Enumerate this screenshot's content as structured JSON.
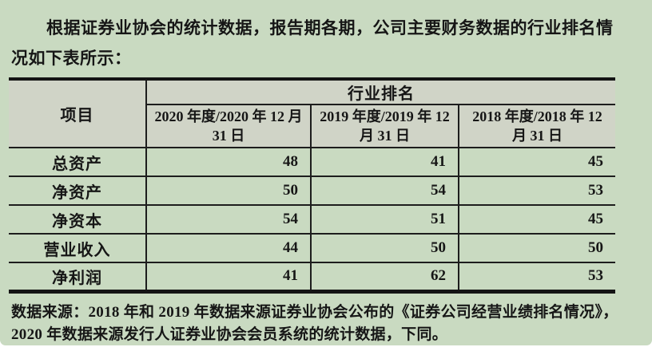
{
  "page": {
    "bg_color": "#c9dac1",
    "header_cell_color": "#d0d4c7",
    "border_color": "#1d1d1d",
    "text_color": "#161616"
  },
  "intro": {
    "line1": "根据证券业协会的统计数据，报告期各期，公司主要财务数据的行业排名情",
    "line2": "况如下表所示："
  },
  "table": {
    "header": {
      "item_col": "项目",
      "group_header": "行业排名",
      "period_cols": [
        "2020 年度/2020 年 12 月 31 日",
        "2019 年度/2019 年 12 月 31 日",
        "2018 年度/2018 年 12 月 31 日"
      ]
    },
    "rows": [
      {
        "label": "总资产",
        "values": [
          "48",
          "41",
          "45"
        ]
      },
      {
        "label": "净资产",
        "values": [
          "50",
          "54",
          "53"
        ]
      },
      {
        "label": "净资本",
        "values": [
          "54",
          "51",
          "45"
        ]
      },
      {
        "label": "营业收入",
        "values": [
          "44",
          "50",
          "50"
        ]
      },
      {
        "label": "净利润",
        "values": [
          "41",
          "62",
          "53"
        ]
      }
    ]
  },
  "footnote": {
    "line1": "数据来源：2018 年和 2019 年数据来源证券业协会公布的《证券公司经营业绩排名情况》，",
    "line2": "2020 年数据来源发行人证券业协会会员系统的统计数据，下同。"
  }
}
